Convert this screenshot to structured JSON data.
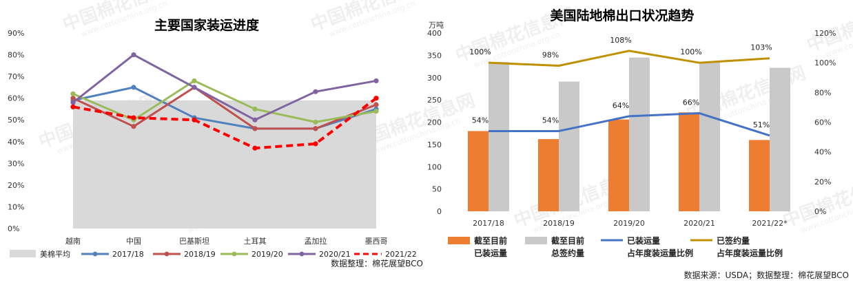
{
  "chart_data": [
    {
      "type": "line",
      "title": "主要国家装运进度",
      "categories": [
        "越南",
        "中国",
        "巴基斯坦",
        "土耳其",
        "孟加拉",
        "墨西哥"
      ],
      "y_ticks": [
        "0%",
        "10%",
        "20%",
        "30%",
        "40%",
        "50%",
        "60%",
        "70%",
        "80%",
        "90%"
      ],
      "ylim": [
        0,
        0.9
      ],
      "band": {
        "name": "美棉平均",
        "value": 0.59,
        "color": "#d9d9d9"
      },
      "series": [
        {
          "name": "2017/18",
          "color": "#4f81bd",
          "dashed": false,
          "values": [
            0.59,
            0.65,
            0.51,
            0.46,
            0.46,
            0.55
          ]
        },
        {
          "name": "2018/19",
          "color": "#c0504d",
          "dashed": false,
          "values": [
            0.6,
            0.47,
            0.65,
            0.46,
            0.46,
            0.57
          ]
        },
        {
          "name": "2019/20",
          "color": "#9bbb59",
          "dashed": false,
          "values": [
            0.62,
            0.5,
            0.68,
            0.55,
            0.49,
            0.54
          ]
        },
        {
          "name": "2020/21",
          "color": "#8064a2",
          "dashed": false,
          "values": [
            0.58,
            0.8,
            0.65,
            0.5,
            0.63,
            0.68
          ]
        },
        {
          "name": "2021/22",
          "color": "#ff0000",
          "dashed": true,
          "values": [
            0.56,
            0.51,
            0.5,
            0.37,
            0.39,
            0.6
          ]
        }
      ],
      "note": "数据整理：棉花展望BCO"
    },
    {
      "type": "bar",
      "title": "美国陆地棉出口状况趋势",
      "y_unit": "万吨",
      "categories": [
        "2017/18",
        "2018/19",
        "2019/20",
        "2020/21",
        "2021/22*"
      ],
      "y_ticks": [
        "0",
        "50",
        "100",
        "150",
        "200",
        "250",
        "300",
        "350",
        "400"
      ],
      "ylim": [
        0,
        400
      ],
      "y2_ticks": [
        "0%",
        "20%",
        "40%",
        "60%",
        "80%",
        "100%",
        "120%"
      ],
      "y2lim": [
        0,
        1.2
      ],
      "bars": [
        {
          "name": "截至目前 已装运量",
          "name_lines": [
            "截至目前",
            "已装运量"
          ],
          "color": "#ed7d31",
          "values": [
            180,
            162,
            206,
            222,
            160
          ]
        },
        {
          "name": "截至目前 总签约量",
          "name_lines": [
            "截至目前",
            "总签约量"
          ],
          "color": "#c9c9c9",
          "values": [
            335,
            291,
            345,
            335,
            322
          ]
        }
      ],
      "lines": [
        {
          "name": "已装运量 占年度装运量比例",
          "name_lines": [
            "已装运量",
            "占年度装运量比例"
          ],
          "color": "#4472c4",
          "values": [
            0.54,
            0.54,
            0.64,
            0.66,
            0.51
          ],
          "labels": [
            "54%",
            "54%",
            "64%",
            "66%",
            "51%"
          ]
        },
        {
          "name": "已签约量 占年度装运量比例",
          "name_lines": [
            "已签约量",
            "占年度装运量比例"
          ],
          "color": "#bf9000",
          "values": [
            1.0,
            0.98,
            1.08,
            1.0,
            1.03
          ],
          "labels": [
            "100%",
            "98%",
            "108%",
            "100%",
            "103%"
          ]
        }
      ],
      "note": "数据来源：USDA；数据整理：棉花展望BCO"
    }
  ],
  "watermark": {
    "brand": "中国棉花信息网",
    "url": "www.cottonchina.org.cn"
  }
}
